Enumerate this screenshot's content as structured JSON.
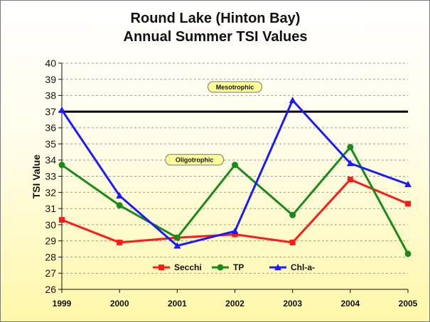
{
  "chart_data": {
    "type": "line",
    "title": [
      "Round Lake (Hinton Bay)",
      "Annual Summer TSI Values"
    ],
    "xlabel": "",
    "ylabel": "TSI Value",
    "x": [
      1999,
      2000,
      2001,
      2002,
      2003,
      2004,
      2005
    ],
    "x_tick_labels": [
      "1999",
      "2000",
      "2001",
      "2002",
      "2003",
      "2004",
      "2005"
    ],
    "ylim": [
      26,
      40
    ],
    "y_ticks": [
      "26",
      "27",
      "28",
      "29",
      "30",
      "31",
      "32",
      "33",
      "34",
      "35",
      "36",
      "37",
      "38",
      "39",
      "40"
    ],
    "grid": "horizontal dashed",
    "legend_position": "bottom-center",
    "threshold": {
      "value": 37,
      "color": "#000000"
    },
    "annotations": [
      {
        "text": "Mesotrophic",
        "x": 2002,
        "y": 38.5
      },
      {
        "text": "Oligotrophic",
        "x": 2001.3,
        "y": 34.0
      }
    ],
    "series": [
      {
        "name": "Secchi",
        "color": "#ff1a1a",
        "marker": "square",
        "values": [
          30.3,
          28.9,
          29.2,
          29.4,
          28.9,
          32.8,
          31.3
        ]
      },
      {
        "name": "TP",
        "color": "#1a8a1a",
        "marker": "circle",
        "values": [
          33.7,
          31.2,
          29.2,
          33.7,
          30.6,
          34.8,
          28.2
        ]
      },
      {
        "name": "Chl-a-",
        "color": "#1a1aff",
        "marker": "triangle",
        "values": [
          37.1,
          31.8,
          28.7,
          29.6,
          37.7,
          33.8,
          32.5
        ]
      }
    ]
  }
}
